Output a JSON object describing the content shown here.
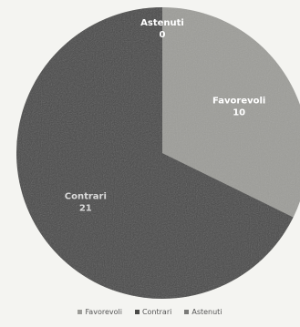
{
  "chart_data": {
    "type": "pie",
    "slices": [
      {
        "label": "Favorevoli",
        "value": 10,
        "color": "#9c9c98"
      },
      {
        "label": "Contrari",
        "value": 21,
        "color": "#4a4a48"
      },
      {
        "label": "Astenuti",
        "value": 0,
        "color": "#7a7a78"
      }
    ],
    "legend": {
      "position": "bottom",
      "entries": [
        "Favorevoli",
        "Contrari",
        "Astenuti"
      ]
    }
  }
}
